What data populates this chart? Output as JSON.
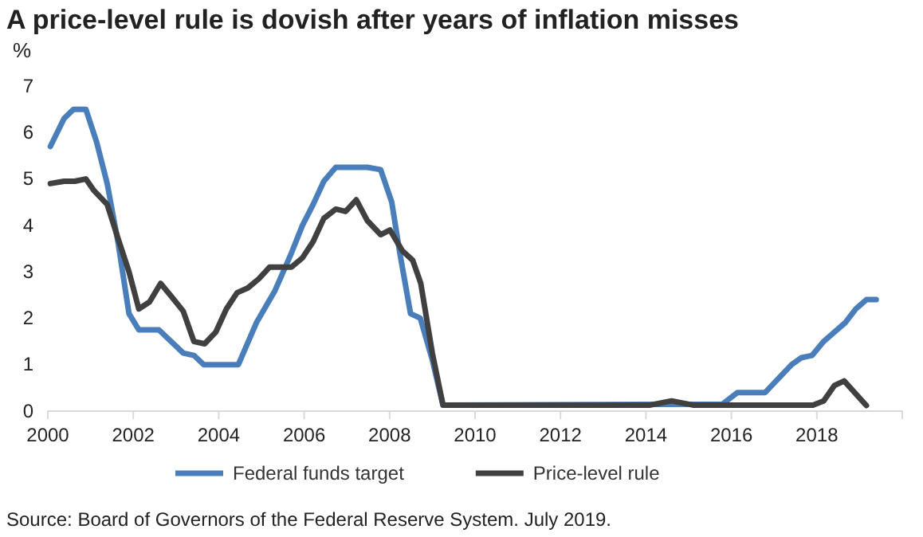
{
  "chart_data": {
    "type": "line",
    "title": "A price-level rule is dovish after years of inflation misses",
    "ylabel": "%",
    "annotations": [
      "Source: Board of Governors of the Federal Reserve System. July 2019."
    ],
    "xlim": [
      2000,
      2020
    ],
    "xticks": [
      2000,
      2002,
      2004,
      2006,
      2008,
      2010,
      2012,
      2014,
      2016,
      2018,
      {
        "value": 2020,
        "label": null
      }
    ],
    "ylim": [
      0,
      7
    ],
    "yticks": [
      0,
      1,
      2,
      3,
      4,
      5,
      6,
      7
    ],
    "grid": false,
    "legend": "bottom",
    "series": [
      {
        "name": "Federal funds target",
        "color": "#4a7ebb",
        "x": [
          2000.06,
          2000.38,
          2000.6,
          2000.89,
          2001.14,
          2001.39,
          2001.65,
          2001.9,
          2002.13,
          2002.6,
          2003.17,
          2003.42,
          2003.65,
          2004.46,
          2004.88,
          2005.32,
          2005.7,
          2005.96,
          2006.21,
          2006.46,
          2006.74,
          2007.48,
          2007.79,
          2008.05,
          2008.24,
          2008.49,
          2008.72,
          2009.0,
          2009.25,
          2015.79,
          2016.14,
          2016.79,
          2017.1,
          2017.41,
          2017.64,
          2017.89,
          2018.16,
          2018.41,
          2018.66,
          2018.91,
          2019.16,
          2019.39
        ],
        "values": [
          5.7,
          6.3,
          6.5,
          6.5,
          5.8,
          4.9,
          3.6,
          2.1,
          1.75,
          1.75,
          1.25,
          1.2,
          1.0,
          1.0,
          1.9,
          2.6,
          3.4,
          4.0,
          4.45,
          4.95,
          5.25,
          5.25,
          5.2,
          4.5,
          3.4,
          2.1,
          2.0,
          1.1,
          0.13,
          0.15,
          0.4,
          0.4,
          0.7,
          1.0,
          1.15,
          1.2,
          1.5,
          1.7,
          1.9,
          2.2,
          2.4,
          2.4
        ]
      },
      {
        "name": "Price-level rule",
        "color": "#404040",
        "x": [
          2000.06,
          2000.38,
          2000.63,
          2000.89,
          2001.08,
          2001.39,
          2001.65,
          2001.9,
          2002.13,
          2002.38,
          2002.64,
          2002.91,
          2003.17,
          2003.42,
          2003.67,
          2003.93,
          2004.18,
          2004.43,
          2004.68,
          2004.94,
          2005.19,
          2005.7,
          2005.96,
          2006.21,
          2006.46,
          2006.74,
          2006.97,
          2007.22,
          2007.48,
          2007.79,
          2008.01,
          2008.3,
          2008.54,
          2008.73,
          2009.0,
          2009.25,
          2014.1,
          2014.6,
          2015.1,
          2017.91,
          2018.16,
          2018.41,
          2018.64,
          2019.16
        ],
        "values": [
          4.9,
          4.95,
          4.95,
          5.0,
          4.75,
          4.45,
          3.7,
          3.0,
          2.2,
          2.35,
          2.75,
          2.45,
          2.15,
          1.5,
          1.45,
          1.7,
          2.2,
          2.55,
          2.65,
          2.85,
          3.1,
          3.1,
          3.3,
          3.65,
          4.15,
          4.35,
          4.3,
          4.55,
          4.1,
          3.8,
          3.9,
          3.45,
          3.25,
          2.75,
          1.25,
          0.13,
          0.13,
          0.22,
          0.13,
          0.13,
          0.22,
          0.55,
          0.65,
          0.12
        ]
      }
    ]
  }
}
